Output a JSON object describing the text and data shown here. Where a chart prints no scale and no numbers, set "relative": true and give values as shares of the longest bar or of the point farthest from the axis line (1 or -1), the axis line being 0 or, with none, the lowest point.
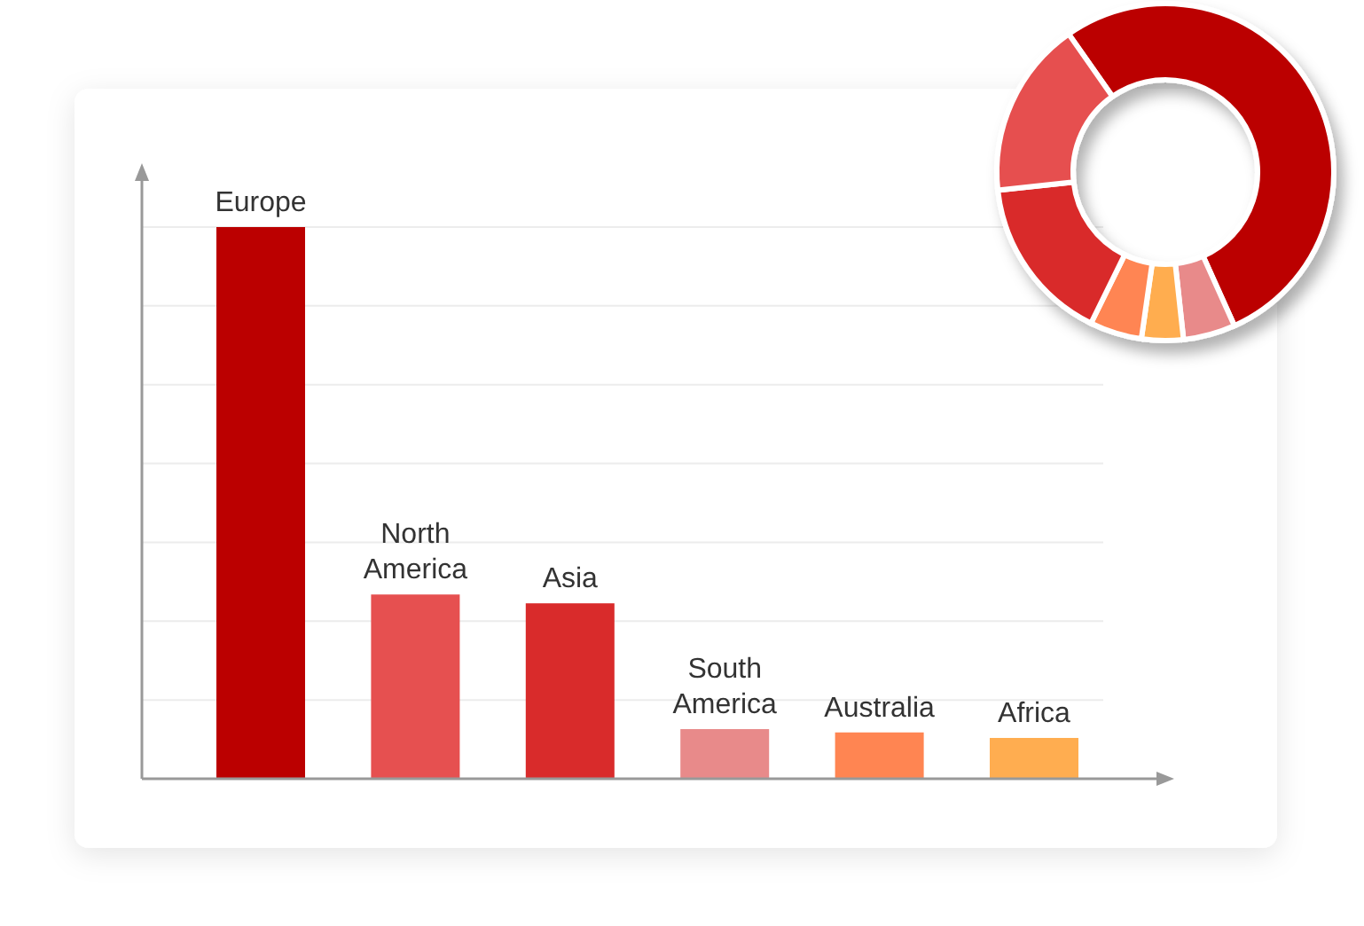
{
  "chart_data": [
    {
      "type": "bar",
      "relative": true,
      "grid": "y",
      "categories": [
        "Europe",
        "North America",
        "Asia",
        "South America",
        "Australia",
        "Africa"
      ],
      "values": [
        1,
        0.334,
        0.318,
        0.09,
        0.084,
        0.074
      ],
      "colors": [
        "#bb0000",
        "#e65050",
        "#d92b2b",
        "#e88a8a",
        "#ff8552",
        "#ffad50"
      ]
    },
    {
      "type": "donut",
      "categories": [
        null,
        null,
        null,
        null,
        null,
        null
      ],
      "values": [
        53,
        5,
        4,
        5,
        16,
        17
      ],
      "colors": [
        "#bb0000",
        "#e88a8a",
        "#ffad50",
        "#ff8552",
        "#d92b2b",
        "#e65050"
      ]
    }
  ]
}
